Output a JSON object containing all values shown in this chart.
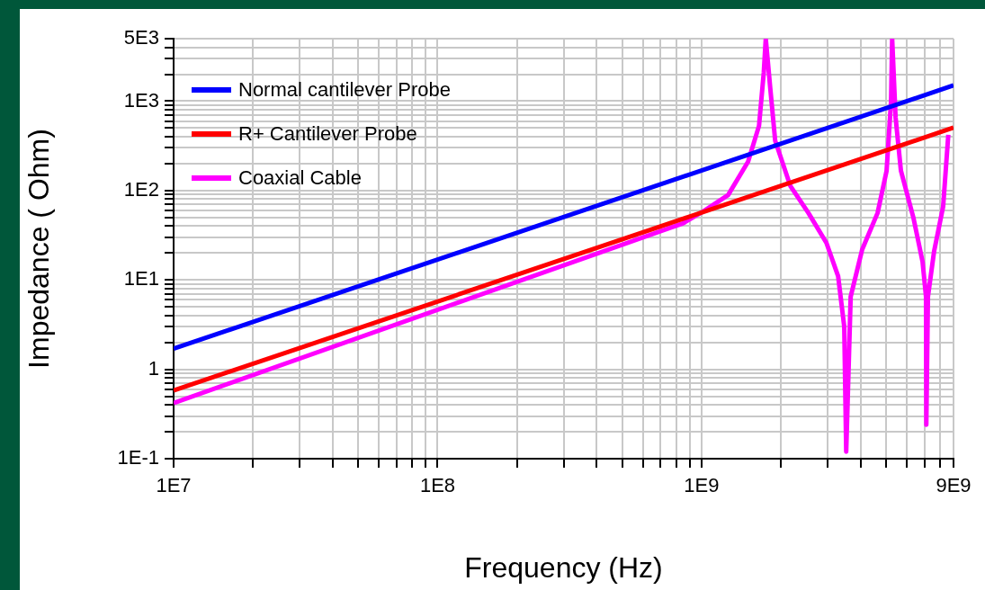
{
  "chart_data": {
    "type": "line",
    "xlabel": "Frequency (Hz)",
    "ylabel": "Impedance ( Ohm)",
    "log": "xy",
    "grid": true,
    "legend": "top left",
    "marker": "none",
    "line_style": "solid",
    "xlim": [
      10000000.0,
      9000000000.0
    ],
    "ylim": [
      0.1,
      5000
    ],
    "xticks": [
      {
        "value": 10000000.0,
        "label": "1E7"
      },
      {
        "value": 20000000.0,
        "label": null
      },
      {
        "value": 30000000.0,
        "label": null
      },
      {
        "value": 40000000.0,
        "label": null
      },
      {
        "value": 50000000.0,
        "label": null
      },
      {
        "value": 60000000.0,
        "label": null
      },
      {
        "value": 70000000.0,
        "label": null
      },
      {
        "value": 80000000.0,
        "label": null
      },
      {
        "value": 90000000.0,
        "label": null
      },
      {
        "value": 100000000.0,
        "label": "1E8"
      },
      {
        "value": 200000000.0,
        "label": null
      },
      {
        "value": 300000000.0,
        "label": null
      },
      {
        "value": 400000000.0,
        "label": null
      },
      {
        "value": 500000000.0,
        "label": null
      },
      {
        "value": 600000000.0,
        "label": null
      },
      {
        "value": 700000000.0,
        "label": null
      },
      {
        "value": 800000000.0,
        "label": null
      },
      {
        "value": 900000000.0,
        "label": null
      },
      {
        "value": 1000000000.0,
        "label": "1E9"
      },
      {
        "value": 2000000000.0,
        "label": null
      },
      {
        "value": 3000000000.0,
        "label": null
      },
      {
        "value": 4000000000.0,
        "label": null
      },
      {
        "value": 5000000000.0,
        "label": null
      },
      {
        "value": 6000000000.0,
        "label": null
      },
      {
        "value": 7000000000.0,
        "label": null
      },
      {
        "value": 8000000000.0,
        "label": null
      },
      {
        "value": 9000000000.0,
        "label": "9E9"
      }
    ],
    "yticks": [
      {
        "value": 0.1,
        "label": "1E-1"
      },
      {
        "value": 0.2,
        "label": null
      },
      {
        "value": 0.3,
        "label": null
      },
      {
        "value": 0.4,
        "label": null
      },
      {
        "value": 0.5,
        "label": null
      },
      {
        "value": 0.6,
        "label": null
      },
      {
        "value": 0.7,
        "label": null
      },
      {
        "value": 0.8,
        "label": null
      },
      {
        "value": 0.9,
        "label": null
      },
      1,
      {
        "value": 2,
        "label": null
      },
      {
        "value": 3,
        "label": null
      },
      {
        "value": 4,
        "label": null
      },
      {
        "value": 5,
        "label": null
      },
      {
        "value": 6,
        "label": null
      },
      {
        "value": 7,
        "label": null
      },
      {
        "value": 8,
        "label": null
      },
      {
        "value": 9,
        "label": null
      },
      {
        "value": 10,
        "label": "1E1"
      },
      {
        "value": 20,
        "label": null
      },
      {
        "value": 30,
        "label": null
      },
      {
        "value": 40,
        "label": null
      },
      {
        "value": 50,
        "label": null
      },
      {
        "value": 60,
        "label": null
      },
      {
        "value": 70,
        "label": null
      },
      {
        "value": 80,
        "label": null
      },
      {
        "value": 90,
        "label": null
      },
      {
        "value": 100,
        "label": "1E2"
      },
      {
        "value": 200,
        "label": null
      },
      {
        "value": 300,
        "label": null
      },
      {
        "value": 400,
        "label": null
      },
      {
        "value": 500,
        "label": null
      },
      {
        "value": 600,
        "label": null
      },
      {
        "value": 700,
        "label": null
      },
      {
        "value": 800,
        "label": null
      },
      {
        "value": 900,
        "label": null
      },
      {
        "value": 1000,
        "label": "1E3"
      },
      {
        "value": 2000,
        "label": null
      },
      {
        "value": 3000,
        "label": null
      },
      {
        "value": 4000,
        "label": null
      },
      {
        "value": 5000,
        "label": "5E3"
      }
    ],
    "series": [
      {
        "name": "Normal cantilever Probe",
        "color": "#0000ff",
        "x": [
          10000000.0,
          9000000000.0
        ],
        "values": [
          1.7,
          1500
        ]
      },
      {
        "name": "R+ Cantilever Probe",
        "color": "#ff0000",
        "x": [
          10000000.0,
          9000000000.0
        ],
        "values": [
          0.58,
          505
        ]
      },
      {
        "name": "Coaxial Cable",
        "color": "#ff00ff",
        "x": [
          10000000.0,
          850000000.0,
          1020000000.0,
          1260000000.0,
          1500000000.0,
          1650000000.0,
          1720000000.0,
          1750000000.0,
          1820000000.0,
          1900000000.0,
          2170000000.0,
          2540000000.0,
          2970000000.0,
          3290000000.0,
          3470000000.0,
          3530000000.0,
          3670000000.0,
          4060000000.0,
          4640000000.0,
          5020000000.0,
          5220000000.0,
          5270000000.0,
          5430000000.0,
          5690000000.0,
          6350000000.0,
          6870000000.0,
          7080000000.0,
          7100000000.0,
          7200000000.0,
          7600000000.0,
          8220000000.0,
          8600000000.0
        ],
        "values": [
          0.42,
          43,
          59,
          89,
          210,
          530,
          2100,
          5000,
          1400,
          360,
          112,
          56,
          26,
          11,
          3,
          0.12,
          6.5,
          22,
          56,
          166,
          1000,
          5000,
          660,
          166,
          49,
          16,
          6.5,
          0.24,
          6.5,
          21,
          66,
          420
        ]
      }
    ]
  }
}
